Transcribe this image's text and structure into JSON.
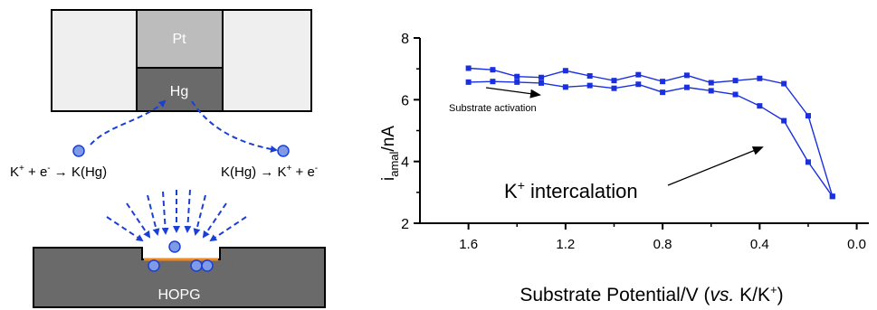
{
  "schematic": {
    "electrode_top_label": "Pt",
    "electrode_bottom_label": "Hg",
    "reaction_left_pre": "K",
    "reaction_left_mid": " + e",
    "reaction_left_arrow": " →  K(Hg)",
    "reaction_right_pre": "K(Hg) → K",
    "reaction_right_mid": " + e",
    "charge_plus": "+",
    "charge_minus": "-",
    "substrate_label": "HOPG",
    "colors": {
      "pt": "#bcbcbc",
      "hg": "#6a6a6a",
      "sheath": "#efefef",
      "hopg": "#6a6a6a",
      "arrows": "#1a3fd6",
      "ions": "#7f9be6",
      "interface": "#f08a1e"
    }
  },
  "chart_data": {
    "type": "line",
    "ylabel_main": "i",
    "ylabel_sub": "amal",
    "ylabel_unit": "/nA",
    "xlabel_pre": "Substrate Potential/V (",
    "xlabel_italic": "vs.",
    "xlabel_post": " K/K",
    "xlabel_sup": "+",
    "xlabel_close": ")",
    "xlim": [
      1.8,
      -0.05
    ],
    "ylim": [
      2,
      8
    ],
    "xticks": [
      "1.6",
      "1.2",
      "0.8",
      "0.4",
      "0.0"
    ],
    "xtick_values": [
      1.6,
      1.2,
      0.8,
      0.4,
      0.0
    ],
    "yticks": [
      "2",
      "4",
      "6",
      "8"
    ],
    "ytick_values": [
      2,
      4,
      6,
      8
    ],
    "series_color": "#1a2fe0",
    "series": [
      {
        "x": [
          1.6,
          1.5,
          1.4,
          1.3,
          1.2,
          1.1,
          1.0,
          0.9,
          0.8,
          0.7,
          0.6,
          0.5,
          0.4,
          0.3,
          0.2,
          0.1
        ],
        "values": [
          7.02,
          6.97,
          6.75,
          6.72,
          6.94,
          6.77,
          6.62,
          6.81,
          6.59,
          6.79,
          6.55,
          6.62,
          6.69,
          6.52,
          5.48,
          2.87
        ]
      },
      {
        "x": [
          1.6,
          1.5,
          1.4,
          1.3,
          1.2,
          1.1,
          1.0,
          0.9,
          0.8,
          0.7,
          0.6,
          0.5,
          0.4,
          0.3,
          0.2,
          0.1
        ],
        "values": [
          6.57,
          6.59,
          6.57,
          6.54,
          6.41,
          6.46,
          6.37,
          6.5,
          6.24,
          6.4,
          6.29,
          6.17,
          5.8,
          5.32,
          3.98,
          2.87
        ]
      }
    ],
    "annotations": {
      "activation": "Substrate activation",
      "intercalation_pre": "K",
      "intercalation_sup": "+",
      "intercalation_post": " intercalation"
    }
  }
}
